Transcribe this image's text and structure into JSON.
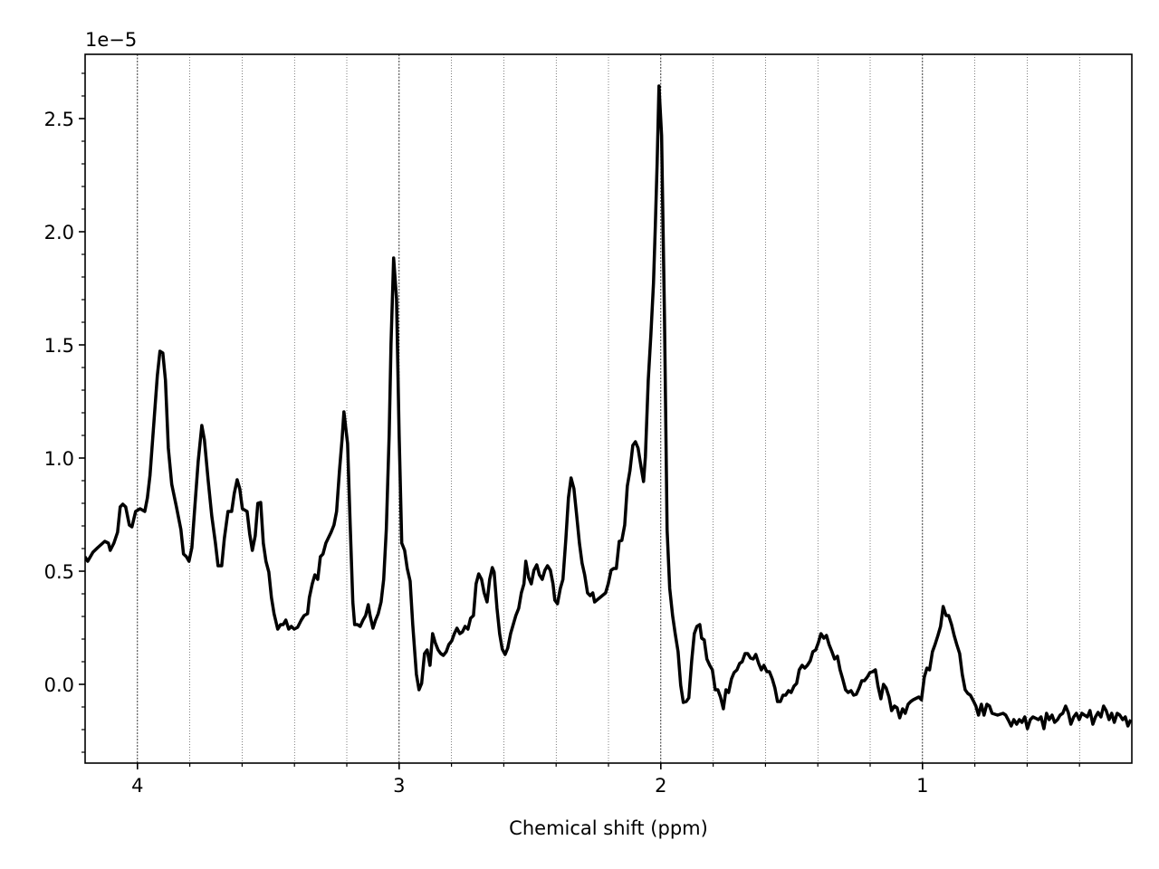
{
  "chart_data": {
    "type": "line",
    "xlabel": "Chemical shift (ppm)",
    "y_offset_label": "1e−5",
    "color": "#000000",
    "xlim": [
      4.2,
      0.2
    ],
    "ylim": [
      -0.348,
      2.784
    ],
    "xticks": [
      4,
      3,
      2,
      1
    ],
    "xminorticks": [
      3.8,
      3.6,
      3.4,
      3.2,
      2.8,
      2.6,
      2.4,
      2.2,
      1.8,
      1.6,
      1.4,
      1.2,
      0.8,
      0.6,
      0.4
    ],
    "yticks": [
      {
        "value": 0,
        "label": "0.0"
      },
      0.5,
      {
        "value": 1,
        "label": "1.0"
      },
      1.5,
      {
        "value": 2,
        "label": "2.0"
      },
      2.5
    ],
    "yminorticks": [
      -0.3,
      -0.2,
      -0.1,
      0.1,
      0.2,
      0.3,
      0.4,
      0.6,
      0.7,
      0.8,
      0.9,
      1.1,
      1.2,
      1.3,
      1.4,
      1.6,
      1.7,
      1.8,
      1.9,
      2.1,
      2.2,
      2.3,
      2.4,
      2.6,
      2.7
    ],
    "grid": true,
    "x": [
      4.201,
      4.19,
      4.17,
      4.152,
      4.125,
      4.111,
      4.104,
      4.09,
      4.076,
      4.066,
      4.056,
      4.045,
      4.031,
      4.021,
      4.007,
      3.99,
      3.972,
      3.962,
      3.952,
      3.938,
      3.924,
      3.914,
      3.903,
      3.893,
      3.882,
      3.869,
      3.851,
      3.834,
      3.824,
      3.813,
      3.803,
      3.792,
      3.782,
      3.768,
      3.754,
      3.744,
      3.73,
      3.716,
      3.702,
      3.692,
      3.678,
      3.668,
      3.654,
      3.64,
      3.63,
      3.619,
      3.609,
      3.599,
      3.581,
      3.571,
      3.561,
      3.55,
      3.54,
      3.529,
      3.519,
      3.509,
      3.498,
      3.488,
      3.478,
      3.464,
      3.453,
      3.443,
      3.433,
      3.422,
      3.412,
      3.401,
      3.388,
      3.374,
      3.363,
      3.35,
      3.343,
      3.332,
      3.322,
      3.311,
      3.301,
      3.291,
      3.28,
      3.26,
      3.249,
      3.239,
      3.228,
      3.218,
      3.211,
      3.197,
      3.187,
      3.177,
      3.17,
      3.159,
      3.149,
      3.138,
      3.128,
      3.118,
      3.111,
      3.1,
      3.09,
      3.08,
      3.069,
      3.059,
      3.049,
      3.038,
      3.031,
      3.021,
      3.01,
      3.0,
      2.99,
      2.979,
      2.969,
      2.958,
      2.948,
      2.934,
      2.924,
      2.914,
      2.903,
      2.893,
      2.882,
      2.872,
      2.862,
      2.851,
      2.841,
      2.831,
      2.82,
      2.81,
      2.799,
      2.789,
      2.779,
      2.768,
      2.758,
      2.748,
      2.737,
      2.727,
      2.716,
      2.706,
      2.696,
      2.685,
      2.675,
      2.664,
      2.654,
      2.644,
      2.637,
      2.626,
      2.616,
      2.606,
      2.595,
      2.585,
      2.574,
      2.564,
      2.554,
      2.543,
      2.533,
      2.523,
      2.516,
      2.505,
      2.495,
      2.485,
      2.474,
      2.464,
      2.453,
      2.443,
      2.433,
      2.422,
      2.412,
      2.405,
      2.395,
      2.384,
      2.374,
      2.363,
      2.353,
      2.343,
      2.332,
      2.322,
      2.311,
      2.301,
      2.291,
      2.28,
      2.27,
      2.26,
      2.253,
      2.232,
      2.211,
      2.201,
      2.19,
      2.18,
      2.17,
      2.159,
      2.149,
      2.138,
      2.128,
      2.118,
      2.107,
      2.097,
      2.087,
      2.076,
      2.066,
      2.059,
      2.048,
      2.038,
      2.028,
      2.021,
      2.014,
      2.007,
      1.997,
      1.986,
      1.976,
      1.966,
      1.955,
      1.945,
      1.934,
      1.924,
      1.914,
      1.903,
      1.893,
      1.882,
      1.872,
      1.862,
      1.851,
      1.844,
      1.834,
      1.824,
      1.813,
      1.803,
      1.792,
      1.782,
      1.772,
      1.761,
      1.751,
      1.741,
      1.73,
      1.72,
      1.709,
      1.699,
      1.689,
      1.678,
      1.668,
      1.657,
      1.647,
      1.637,
      1.626,
      1.616,
      1.606,
      1.595,
      1.585,
      1.574,
      1.564,
      1.554,
      1.543,
      1.533,
      1.523,
      1.512,
      1.502,
      1.491,
      1.481,
      1.471,
      1.46,
      1.45,
      1.44,
      1.429,
      1.419,
      1.408,
      1.398,
      1.388,
      1.377,
      1.367,
      1.357,
      1.346,
      1.336,
      1.325,
      1.315,
      1.305,
      1.294,
      1.284,
      1.273,
      1.263,
      1.253,
      1.242,
      1.232,
      1.222,
      1.211,
      1.201,
      1.19,
      1.18,
      1.17,
      1.159,
      1.149,
      1.139,
      1.128,
      1.118,
      1.107,
      1.097,
      1.087,
      1.076,
      1.066,
      1.055,
      1.045,
      1.035,
      1.014,
      1.004,
      0.993,
      0.983,
      0.973,
      0.962,
      0.952,
      0.941,
      0.931,
      0.921,
      0.91,
      0.9,
      0.889,
      0.879,
      0.869,
      0.858,
      0.848,
      0.837,
      0.827,
      0.817,
      0.806,
      0.796,
      0.786,
      0.775,
      0.765,
      0.754,
      0.744,
      0.734,
      0.713,
      0.692,
      0.682,
      0.671,
      0.661,
      0.651,
      0.64,
      0.63,
      0.62,
      0.609,
      0.599,
      0.588,
      0.578,
      0.557,
      0.547,
      0.536,
      0.526,
      0.516,
      0.505,
      0.495,
      0.484,
      0.474,
      0.464,
      0.453,
      0.443,
      0.433,
      0.422,
      0.412,
      0.401,
      0.391,
      0.381,
      0.37,
      0.36,
      0.349,
      0.339,
      0.329,
      0.318,
      0.308,
      0.298,
      0.287,
      0.277,
      0.267,
      0.256,
      0.246,
      0.235,
      0.225,
      0.215,
      0.204
    ],
    "values": [
      0.564,
      0.544,
      0.584,
      0.604,
      0.632,
      0.624,
      0.592,
      0.624,
      0.672,
      0.784,
      0.796,
      0.784,
      0.704,
      0.696,
      0.764,
      0.776,
      0.764,
      0.824,
      0.924,
      1.144,
      1.364,
      1.472,
      1.464,
      1.344,
      1.044,
      0.884,
      0.784,
      0.684,
      0.576,
      0.564,
      0.544,
      0.604,
      0.764,
      0.984,
      1.144,
      1.08,
      0.904,
      0.744,
      0.624,
      0.524,
      0.524,
      0.644,
      0.764,
      0.764,
      0.844,
      0.904,
      0.864,
      0.776,
      0.764,
      0.664,
      0.592,
      0.656,
      0.8,
      0.804,
      0.624,
      0.544,
      0.496,
      0.384,
      0.312,
      0.244,
      0.264,
      0.264,
      0.284,
      0.244,
      0.256,
      0.244,
      0.252,
      0.284,
      0.304,
      0.312,
      0.384,
      0.444,
      0.484,
      0.464,
      0.564,
      0.576,
      0.624,
      0.672,
      0.704,
      0.764,
      0.944,
      1.084,
      1.204,
      1.064,
      0.704,
      0.364,
      0.264,
      0.264,
      0.256,
      0.284,
      0.304,
      0.352,
      0.304,
      0.248,
      0.284,
      0.312,
      0.364,
      0.464,
      0.684,
      1.104,
      1.504,
      1.884,
      1.704,
      1.104,
      0.624,
      0.592,
      0.512,
      0.456,
      0.264,
      0.044,
      -0.024,
      0.004,
      0.136,
      0.152,
      0.084,
      0.224,
      0.184,
      0.152,
      0.136,
      0.128,
      0.144,
      0.176,
      0.192,
      0.224,
      0.248,
      0.224,
      0.232,
      0.256,
      0.244,
      0.292,
      0.304,
      0.444,
      0.488,
      0.464,
      0.404,
      0.364,
      0.464,
      0.516,
      0.496,
      0.336,
      0.224,
      0.156,
      0.132,
      0.16,
      0.224,
      0.264,
      0.304,
      0.336,
      0.404,
      0.444,
      0.544,
      0.472,
      0.444,
      0.504,
      0.528,
      0.484,
      0.464,
      0.504,
      0.524,
      0.504,
      0.444,
      0.372,
      0.356,
      0.424,
      0.464,
      0.64,
      0.824,
      0.912,
      0.864,
      0.752,
      0.624,
      0.536,
      0.484,
      0.404,
      0.392,
      0.404,
      0.364,
      0.384,
      0.404,
      0.444,
      0.504,
      0.512,
      0.512,
      0.632,
      0.636,
      0.704,
      0.876,
      0.944,
      1.056,
      1.072,
      1.044,
      0.964,
      0.896,
      1.004,
      1.344,
      1.544,
      1.772,
      2.024,
      2.304,
      2.644,
      2.424,
      1.624,
      0.684,
      0.424,
      0.304,
      0.224,
      0.144,
      -0.004,
      -0.08,
      -0.076,
      -0.06,
      0.104,
      0.224,
      0.256,
      0.264,
      0.204,
      0.196,
      0.112,
      0.084,
      0.064,
      -0.024,
      -0.024,
      -0.056,
      -0.108,
      -0.024,
      -0.036,
      0.024,
      0.052,
      0.064,
      0.092,
      0.1,
      0.136,
      0.136,
      0.116,
      0.112,
      0.132,
      0.092,
      0.064,
      0.084,
      0.056,
      0.056,
      0.024,
      -0.016,
      -0.076,
      -0.076,
      -0.048,
      -0.048,
      -0.028,
      -0.036,
      -0.008,
      0.004,
      0.064,
      0.084,
      0.072,
      0.084,
      0.104,
      0.144,
      0.152,
      0.184,
      0.224,
      0.204,
      0.216,
      0.176,
      0.144,
      0.112,
      0.124,
      0.064,
      0.024,
      -0.024,
      -0.036,
      -0.028,
      -0.048,
      -0.044,
      -0.016,
      0.016,
      0.016,
      0.032,
      0.052,
      0.056,
      0.064,
      -0.008,
      -0.064,
      0.0,
      -0.016,
      -0.056,
      -0.116,
      -0.096,
      -0.104,
      -0.148,
      -0.108,
      -0.128,
      -0.088,
      -0.076,
      -0.068,
      -0.056,
      -0.068,
      0.032,
      0.072,
      0.064,
      0.144,
      0.176,
      0.216,
      0.256,
      0.344,
      0.304,
      0.304,
      0.264,
      0.216,
      0.176,
      0.136,
      0.044,
      -0.024,
      -0.04,
      -0.048,
      -0.072,
      -0.096,
      -0.136,
      -0.088,
      -0.136,
      -0.088,
      -0.096,
      -0.128,
      -0.136,
      -0.128,
      -0.136,
      -0.16,
      -0.184,
      -0.156,
      -0.176,
      -0.156,
      -0.168,
      -0.144,
      -0.196,
      -0.156,
      -0.144,
      -0.156,
      -0.144,
      -0.196,
      -0.128,
      -0.156,
      -0.136,
      -0.168,
      -0.156,
      -0.136,
      -0.128,
      -0.096,
      -0.124,
      -0.176,
      -0.144,
      -0.128,
      -0.156,
      -0.128,
      -0.136,
      -0.144,
      -0.116,
      -0.176,
      -0.144,
      -0.124,
      -0.144,
      -0.096,
      -0.116,
      -0.156,
      -0.128,
      -0.168,
      -0.128,
      -0.136,
      -0.156,
      -0.144,
      -0.184,
      -0.156
    ]
  }
}
